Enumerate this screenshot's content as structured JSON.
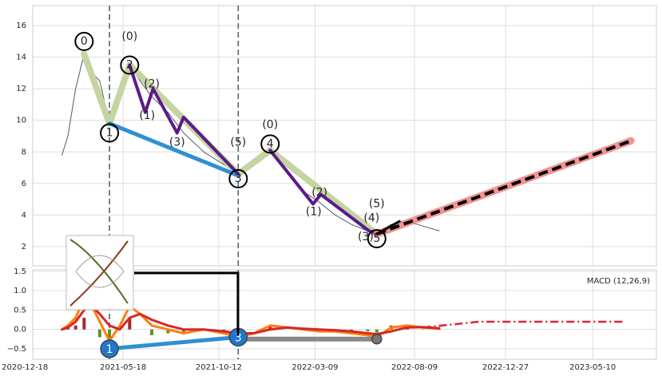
{
  "chart_data": [
    {
      "type": "line",
      "xlim": [
        "2020-12-30",
        "2023-08-16"
      ],
      "ylim": [
        0.78,
        17.27
      ],
      "yticks": [
        2,
        4,
        6,
        8,
        10,
        12,
        14,
        16
      ],
      "grid": true,
      "vlines": [
        "2021-04-27",
        "2021-11-11"
      ],
      "series": [
        {
          "color": "#4f5b66",
          "width": 1,
          "x": [
            "2021-02-13",
            "2021-02-22",
            "2021-03-06",
            "2021-03-19",
            "2021-03-31",
            "2021-04-12",
            "2021-04-27",
            "2021-05-13",
            "2021-05-28",
            "2021-06-13",
            "2021-07-01",
            "2021-07-26",
            "2021-08-19",
            "2021-09-19",
            "2021-10-20",
            "2021-11-11",
            "2021-12-05",
            "2021-12-30",
            "2022-01-26",
            "2022-02-19",
            "2022-03-16",
            "2022-04-09",
            "2022-05-04",
            "2022-05-29",
            "2022-06-12",
            "2022-07-04",
            "2022-07-29",
            "2022-08-22",
            "2022-09-16"
          ],
          "values": [
            7.8,
            9,
            12,
            14.2,
            13,
            12.5,
            9.8,
            11.5,
            13.5,
            12.5,
            11.5,
            10.5,
            9.2,
            8,
            7.2,
            6.6,
            7.5,
            8.1,
            6.8,
            5.5,
            4.8,
            4,
            3.4,
            3,
            2.8,
            3.4,
            3.6,
            3.3,
            3.0
          ]
        },
        {
          "color": "#c5d4a0",
          "width": 8,
          "x": [
            "2021-03-19",
            "2021-04-27",
            "2021-05-28",
            "2021-11-11",
            "2021-12-30",
            "2022-06-12"
          ],
          "values": [
            14.2,
            9.8,
            13.5,
            6.6,
            8.1,
            2.8
          ]
        },
        {
          "color": "#2f8fd1",
          "width": 5,
          "x": [
            "2021-04-27",
            "2021-11-11"
          ],
          "values": [
            9.8,
            6.5
          ]
        },
        {
          "color": "#5b1a8c",
          "width": 4,
          "x": [
            "2021-05-28",
            "2021-06-21",
            "2021-07-03",
            "2021-08-09",
            "2021-08-19",
            "2021-11-11"
          ],
          "values": [
            13.5,
            10.5,
            12,
            9.2,
            10.2,
            6.6
          ]
        },
        {
          "color": "#5b1a8c",
          "width": 4,
          "x": [
            "2021-12-30",
            "2022-03-06",
            "2022-03-18",
            "2022-05-31",
            "2022-06-12"
          ],
          "values": [
            8.1,
            4.7,
            5.3,
            3,
            2.8
          ]
        },
        {
          "color": "#f08080",
          "width": 9,
          "alpha": 0.85,
          "x": [
            "2022-06-12",
            "2023-07-08"
          ],
          "values": [
            2.8,
            8.7
          ]
        },
        {
          "color": "#000000",
          "width": 4,
          "dash": "dashed",
          "x": [
            "2022-06-12",
            "2023-07-08"
          ],
          "values": [
            2.8,
            8.7
          ]
        },
        {
          "color": "#000000",
          "width": 3,
          "x": [
            "2022-06-12",
            "2022-07-17"
          ],
          "values": [
            2.8,
            3.6
          ]
        }
      ],
      "markers": [
        {
          "x": "2021-03-19",
          "y": 15,
          "label": "0",
          "circle": true
        },
        {
          "x": "2021-05-28",
          "y": 13.5,
          "label": "2",
          "circle": true
        },
        {
          "x": "2021-04-27",
          "y": 9.2,
          "label": "1",
          "circle": true
        },
        {
          "x": "2021-11-11",
          "y": 6.3,
          "label": "3",
          "circle": true
        },
        {
          "x": "2021-12-30",
          "y": 8.5,
          "label": "4",
          "circle": true
        },
        {
          "x": "2022-06-12",
          "y": 2.5,
          "label": "5",
          "circle": true
        },
        {
          "x": "2021-05-28",
          "y": 15.3,
          "label": "(0)",
          "circle": false
        },
        {
          "x": "2021-07-01",
          "y": 12.3,
          "label": "(2)",
          "circle": false
        },
        {
          "x": "2021-06-24",
          "y": 10.3,
          "label": "(1)",
          "circle": false
        },
        {
          "x": "2021-08-09",
          "y": 8.6,
          "label": "(3)",
          "circle": false
        },
        {
          "x": "2021-11-11",
          "y": 8.6,
          "label": "(5)",
          "circle": false
        },
        {
          "x": "2021-12-30",
          "y": 9.7,
          "label": "(0)",
          "circle": false
        },
        {
          "x": "2022-03-16",
          "y": 5.4,
          "label": "(2)",
          "circle": false
        },
        {
          "x": "2022-03-07",
          "y": 4.2,
          "label": "(1)",
          "circle": false
        },
        {
          "x": "2022-06-12",
          "y": 4.7,
          "label": "(5)",
          "circle": false
        },
        {
          "x": "2022-06-04",
          "y": 3.8,
          "label": "(4)",
          "circle": false
        },
        {
          "x": "2022-05-26",
          "y": 2.6,
          "label": "(3)",
          "circle": false
        }
      ]
    },
    {
      "type": "line",
      "legend": "MACD (12,26,9)",
      "xlim": [
        "2020-12-30",
        "2023-08-16"
      ],
      "ylim": [
        -0.77,
        1.54
      ],
      "yticks": [
        {
          "value": -0.5,
          "label": "−0.5"
        },
        {
          "value": 0,
          "label": "0.0"
        },
        0.5,
        {
          "value": 1,
          "label": "1.0"
        },
        1.5
      ],
      "grid": true,
      "xticks": [
        "2020-12-18",
        "2021-05-18",
        "2021-10-12",
        "2022-03-09",
        "2022-08-09",
        "2022-12-27",
        "2023-05-10"
      ],
      "vlines": [
        "2021-04-27",
        "2021-11-11"
      ],
      "series": [
        {
          "kind": "bar",
          "color": "#a52a2a",
          "color_negative": "#6b8e23",
          "x": [
            "2021-02-13",
            "2021-02-22",
            "2021-03-06",
            "2021-03-19",
            "2021-03-31",
            "2021-04-12",
            "2021-04-27",
            "2021-05-13",
            "2021-05-28",
            "2021-06-13",
            "2021-07-01",
            "2021-07-26",
            "2021-08-19",
            "2021-09-19",
            "2021-10-20",
            "2021-11-11",
            "2021-12-05",
            "2021-12-30",
            "2022-01-26",
            "2022-02-19",
            "2022-03-16",
            "2022-04-09",
            "2022-05-04",
            "2022-05-29",
            "2022-06-12",
            "2022-07-04",
            "2022-07-29",
            "2022-08-22",
            "2022-09-16"
          ],
          "values": [
            0,
            0.05,
            0.1,
            0.3,
            0,
            -0.2,
            -0.4,
            0.1,
            0.3,
            0,
            -0.15,
            -0.1,
            -0.1,
            0,
            -0.05,
            -0.1,
            0,
            0.1,
            0,
            -0.02,
            -0.05,
            -0.03,
            -0.05,
            -0.05,
            -0.08,
            0.1,
            0.05,
            -0.01,
            -0.01
          ]
        },
        {
          "color": "#ff7f0e",
          "width": 3,
          "x": [
            "2021-02-13",
            "2021-02-22",
            "2021-03-06",
            "2021-03-19",
            "2021-03-31",
            "2021-04-12",
            "2021-04-27",
            "2021-05-13",
            "2021-05-28",
            "2021-06-13",
            "2021-07-01",
            "2021-07-26",
            "2021-08-19",
            "2021-09-19",
            "2021-10-20",
            "2021-11-11",
            "2021-12-05",
            "2021-12-30",
            "2022-01-26",
            "2022-02-19",
            "2022-03-16",
            "2022-04-09",
            "2022-05-04",
            "2022-05-29",
            "2022-06-12",
            "2022-07-04",
            "2022-07-29",
            "2022-08-22",
            "2022-09-16"
          ],
          "values": [
            0,
            0.1,
            0.3,
            0.8,
            0.6,
            0.2,
            -0.3,
            0.1,
            0.6,
            0.4,
            0.1,
            0,
            -0.1,
            0,
            -0.1,
            -0.2,
            -0.1,
            0.1,
            0.05,
            0,
            -0.05,
            -0.05,
            -0.1,
            -0.15,
            -0.2,
            0.05,
            0.1,
            0.05,
            0.02
          ]
        },
        {
          "color": "#d62728",
          "width": 3,
          "x": [
            "2021-02-13",
            "2021-02-22",
            "2021-03-06",
            "2021-03-19",
            "2021-03-31",
            "2021-04-12",
            "2021-04-27",
            "2021-05-13",
            "2021-05-28",
            "2021-06-13",
            "2021-07-01",
            "2021-07-26",
            "2021-08-19",
            "2021-09-19",
            "2021-10-20",
            "2021-11-11",
            "2021-12-05",
            "2021-12-30",
            "2022-01-26",
            "2022-02-19",
            "2022-03-16",
            "2022-04-09",
            "2022-05-04",
            "2022-05-29",
            "2022-06-12",
            "2022-07-04",
            "2022-07-29",
            "2022-08-22",
            "2022-09-16"
          ],
          "values": [
            0,
            0.05,
            0.2,
            0.5,
            0.6,
            0.4,
            0.1,
            0,
            0.3,
            0.4,
            0.25,
            0.1,
            0,
            0,
            -0.05,
            -0.1,
            -0.1,
            0,
            0.05,
            0.02,
            0,
            -0.02,
            -0.05,
            -0.1,
            -0.12,
            -0.05,
            0.05,
            0.06,
            0.03
          ]
        },
        {
          "color": "#d62728",
          "width": 2.5,
          "dash": "dashdot",
          "x": [
            "2022-08-22",
            "2022-11-16",
            "2023-06-29"
          ],
          "values": [
            0.05,
            0.2,
            0.2
          ]
        },
        {
          "color": "#2f8fd1",
          "width": 5,
          "x": [
            "2021-04-27",
            "2021-11-11"
          ],
          "values": [
            -0.5,
            -0.2
          ]
        },
        {
          "color": "#888888",
          "width": 6,
          "x": [
            "2021-11-11",
            "2022-06-12"
          ],
          "values": [
            -0.25,
            -0.25
          ]
        }
      ],
      "markers": [
        {
          "x": "2021-04-27",
          "y": -0.5,
          "label": "1",
          "fill": "#1f77d0"
        },
        {
          "x": "2021-11-11",
          "y": -0.2,
          "label": "3",
          "fill": "#1f77d0"
        },
        {
          "x": "2022-06-12",
          "y": -0.25,
          "fill": "#777777"
        }
      ]
    }
  ]
}
